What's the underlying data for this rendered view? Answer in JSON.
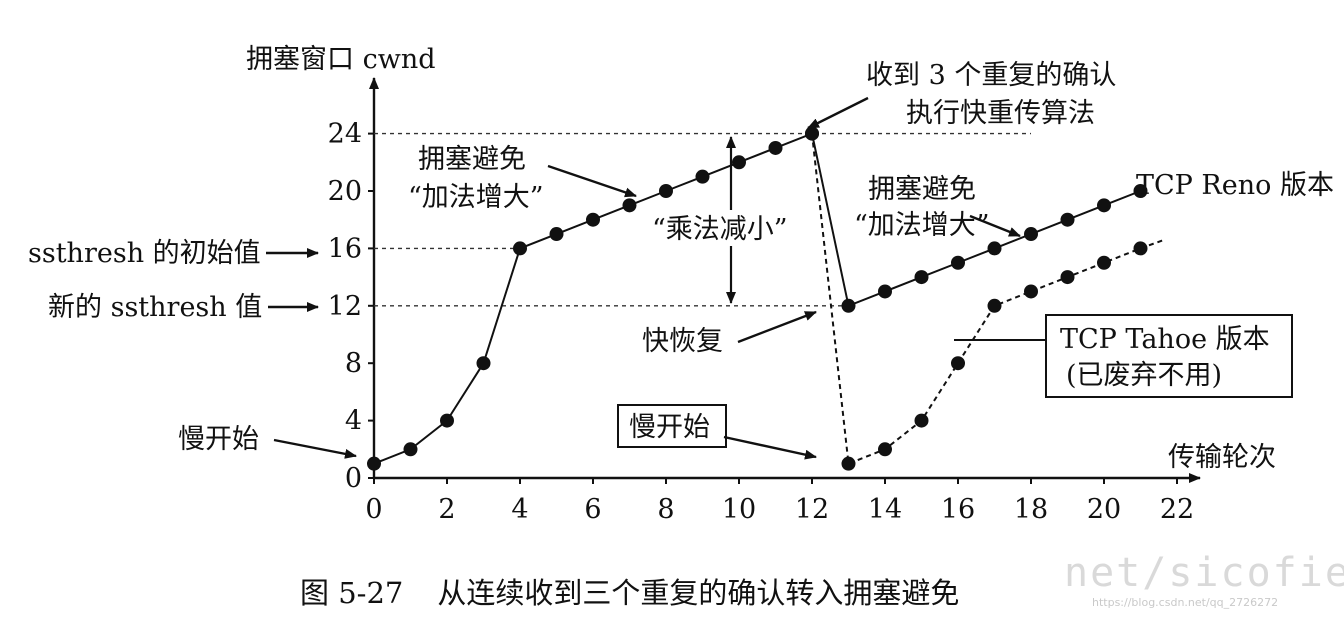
{
  "chart_data": {
    "type": "line",
    "ylabel": "拥塞窗口 cwnd",
    "xlabel": "传输轮次",
    "xlim": [
      0,
      22
    ],
    "ylim": [
      0,
      24
    ],
    "x_ticks": [
      0,
      2,
      4,
      6,
      8,
      10,
      12,
      14,
      16,
      18,
      20,
      22
    ],
    "y_ticks": [
      0,
      4,
      8,
      12,
      16,
      20,
      24
    ],
    "series": [
      {
        "name": "TCP Reno 版本",
        "style": "solid",
        "points": [
          [
            0,
            1
          ],
          [
            1,
            2
          ],
          [
            2,
            4
          ],
          [
            3,
            8
          ],
          [
            4,
            16
          ],
          [
            5,
            17
          ],
          [
            6,
            18
          ],
          [
            7,
            19
          ],
          [
            8,
            20
          ],
          [
            9,
            21
          ],
          [
            10,
            22
          ],
          [
            11,
            23
          ],
          [
            12,
            24
          ],
          [
            13,
            12
          ],
          [
            14,
            13
          ],
          [
            15,
            14
          ],
          [
            16,
            15
          ],
          [
            17,
            16
          ],
          [
            18,
            17
          ],
          [
            19,
            18
          ],
          [
            20,
            19
          ],
          [
            21,
            20
          ]
        ]
      },
      {
        "name": "TCP Tahoe 版本",
        "style": "dashed",
        "points": [
          [
            12,
            24
          ],
          [
            13,
            1
          ],
          [
            14,
            2
          ],
          [
            15,
            4
          ],
          [
            16,
            8
          ],
          [
            17,
            12
          ],
          [
            18,
            13
          ],
          [
            19,
            14
          ],
          [
            20,
            15
          ],
          [
            21,
            16
          ]
        ]
      }
    ],
    "threshold_lines": [
      {
        "y": 24,
        "x_end": 18
      },
      {
        "y": 16,
        "x_end": 4
      },
      {
        "y": 12,
        "x_end": 13
      }
    ],
    "annotations": {
      "ssthresh_initial": "ssthresh 的初始值",
      "ssthresh_new": "新的 ssthresh 值",
      "slow_start_1": "慢开始",
      "slow_start_2": "慢开始",
      "congestion_avoidance_1_line1": "拥塞避免",
      "congestion_avoidance_1_line2": "“加法增大”",
      "congestion_avoidance_2_line1": "拥塞避免",
      "congestion_avoidance_2_line2": "“加法增大”",
      "multiplicative_decrease": "“乘法减小”",
      "fast_recovery": "快恢复",
      "three_dup_acks_line1": "收到 3 个重复的确认",
      "three_dup_acks_line2": "执行快重传算法",
      "reno_label": "TCP Reno 版本",
      "tahoe_label_line1": "TCP Tahoe 版本",
      "tahoe_label_line2": "(已废弃不用)"
    }
  },
  "caption": {
    "number": "图 5-27",
    "text": "从连续收到三个重复的确认转入拥塞避免"
  },
  "watermark": {
    "text": "net/sicofiel",
    "url": "https://blog.csdn.net/qq_2726272"
  }
}
